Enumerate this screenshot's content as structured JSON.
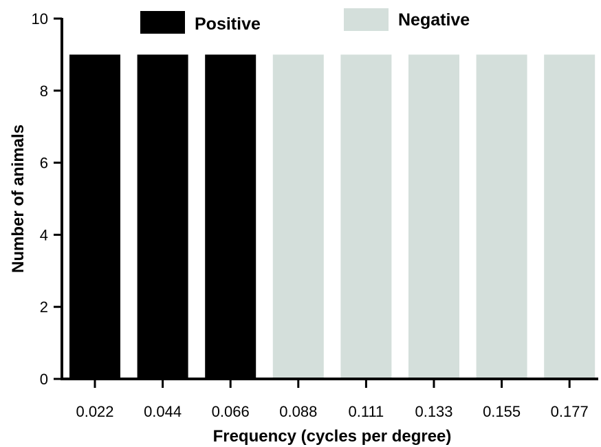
{
  "chart_data": {
    "type": "bar",
    "title": "",
    "xlabel": "Frequency (cycles per degree)",
    "ylabel": "Number of animals",
    "categories": [
      "0.022",
      "0.044",
      "0.066",
      "0.088",
      "0.111",
      "0.133",
      "0.155",
      "0.177"
    ],
    "values": [
      9,
      9,
      9,
      9,
      9,
      9,
      9,
      9
    ],
    "groups": [
      "Positive",
      "Positive",
      "Positive",
      "Negative",
      "Negative",
      "Negative",
      "Negative",
      "Negative"
    ],
    "ylim": [
      0,
      10
    ],
    "yticks": [
      0,
      2,
      4,
      6,
      8,
      10
    ],
    "grid": false,
    "legend": {
      "placement": "top",
      "entries": [
        {
          "name": "Positive",
          "color": "#000000"
        },
        {
          "name": "Negative",
          "color": "#d4dfdb"
        }
      ]
    }
  }
}
